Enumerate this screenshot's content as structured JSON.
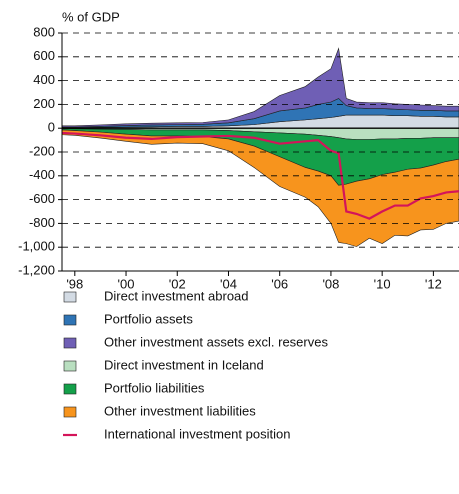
{
  "chart_data": {
    "type": "stacked-area",
    "y_axis_label": "% of GDP",
    "x": [
      1997.5,
      1998,
      1999,
      2000,
      2001,
      2002,
      2003,
      2004,
      2005,
      2006,
      2007,
      2007.5,
      2008,
      2008.3,
      2008.6,
      2009,
      2009.5,
      2010,
      2010.5,
      2011,
      2011.5,
      2012,
      2012.5,
      2013
    ],
    "xlim": [
      1997.5,
      2013
    ],
    "xticks": [
      {
        "value": 1998,
        "label": "'98"
      },
      {
        "value": 2000,
        "label": "'00"
      },
      {
        "value": 2002,
        "label": "'02"
      },
      {
        "value": 2004,
        "label": "'04"
      },
      {
        "value": 2006,
        "label": "'06"
      },
      {
        "value": 2008,
        "label": "'08"
      },
      {
        "value": 2010,
        "label": "'10"
      },
      {
        "value": 2012,
        "label": "'12"
      }
    ],
    "ylim": [
      -1200,
      800
    ],
    "yticks": [
      {
        "value": -1200,
        "label": "-1,200"
      },
      {
        "value": -1000,
        "label": "-1,000"
      },
      -800,
      -600,
      -400,
      -200,
      0,
      200,
      400,
      600,
      800
    ],
    "grid": true,
    "series": [
      {
        "name": "Direct investment abroad",
        "color": "#d3dbe4",
        "stack": "assets",
        "values": [
          5,
          5,
          8,
          10,
          12,
          15,
          15,
          20,
          30,
          55,
          70,
          80,
          90,
          100,
          110,
          110,
          110,
          110,
          105,
          105,
          100,
          100,
          95,
          95
        ]
      },
      {
        "name": "Portfolio assets",
        "color": "#2f74b5",
        "stack": "assets",
        "values": [
          5,
          5,
          8,
          12,
          15,
          15,
          18,
          25,
          50,
          90,
          100,
          120,
          130,
          150,
          80,
          60,
          55,
          55,
          55,
          50,
          50,
          50,
          50,
          50
        ]
      },
      {
        "name": "Other investment assets excl. reserves",
        "color": "#6f5fb5",
        "stack": "assets",
        "values": [
          10,
          10,
          12,
          15,
          15,
          15,
          15,
          25,
          60,
          130,
          180,
          230,
          280,
          420,
          60,
          50,
          50,
          50,
          45,
          45,
          45,
          40,
          40,
          40
        ]
      },
      {
        "name": "Direct investment in Iceland",
        "color": "#b9dfc0",
        "stack": "liabilities",
        "values": [
          -5,
          -5,
          -8,
          -10,
          -15,
          -15,
          -15,
          -20,
          -30,
          -40,
          -50,
          -60,
          -70,
          -80,
          -90,
          -95,
          -95,
          -90,
          -90,
          -85,
          -85,
          -80,
          -80,
          -80
        ]
      },
      {
        "name": "Portfolio liabilities",
        "color": "#14a04a",
        "stack": "liabilities",
        "values": [
          -10,
          -15,
          -25,
          -40,
          -50,
          -50,
          -55,
          -70,
          -120,
          -200,
          -280,
          -300,
          -330,
          -400,
          -380,
          -350,
          -330,
          -300,
          -280,
          -260,
          -250,
          -230,
          -200,
          -180
        ]
      },
      {
        "name": "Other investment liabilities",
        "color": "#f7941d",
        "stack": "liabilities",
        "values": [
          -40,
          -40,
          -50,
          -60,
          -70,
          -60,
          -60,
          -100,
          -180,
          -250,
          -250,
          -300,
          -400,
          -480,
          -500,
          -550,
          -500,
          -580,
          -530,
          -560,
          -520,
          -540,
          -520,
          -520
        ]
      },
      {
        "name": "International investment position",
        "color": "#d4145a",
        "kind": "line",
        "values": [
          -40,
          -45,
          -60,
          -80,
          -90,
          -75,
          -70,
          -65,
          -80,
          -130,
          -110,
          -100,
          -190,
          -210,
          -700,
          -720,
          -760,
          -700,
          -650,
          -650,
          -590,
          -570,
          -540,
          -530
        ]
      }
    ]
  }
}
